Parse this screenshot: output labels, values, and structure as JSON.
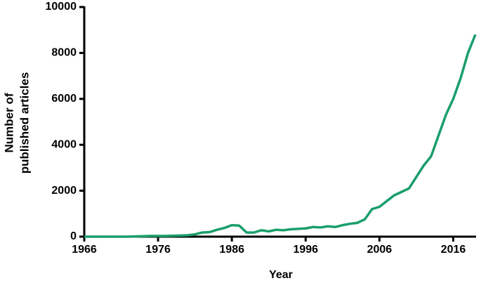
{
  "chart_data": {
    "type": "line",
    "xlabel": "Year",
    "ylabel": [
      "Number of",
      "published articles"
    ],
    "x": [
      1966,
      1967,
      1968,
      1969,
      1970,
      1971,
      1972,
      1973,
      1974,
      1975,
      1976,
      1977,
      1978,
      1979,
      1980,
      1981,
      1982,
      1983,
      1984,
      1985,
      1986,
      1987,
      1988,
      1989,
      1990,
      1991,
      1992,
      1993,
      1994,
      1995,
      1996,
      1997,
      1998,
      1999,
      2000,
      2001,
      2002,
      2003,
      2004,
      2005,
      2006,
      2007,
      2008,
      2009,
      2010,
      2011,
      2012,
      2013,
      2014,
      2015,
      2016,
      2017,
      2018,
      2019
    ],
    "series": [
      {
        "name": "articles",
        "color": "#1a9e6b",
        "values": [
          0,
          0,
          0,
          0,
          0,
          0,
          0,
          10,
          20,
          30,
          30,
          30,
          40,
          50,
          60,
          100,
          180,
          200,
          300,
          380,
          500,
          480,
          180,
          180,
          280,
          230,
          300,
          280,
          320,
          340,
          360,
          420,
          400,
          450,
          420,
          500,
          560,
          600,
          750,
          1200,
          1300,
          1550,
          1800,
          1950,
          2100,
          2600,
          3100,
          3500,
          4400,
          5300,
          6000,
          6900,
          8000,
          8800
        ]
      }
    ],
    "xlim": [
      1966,
      2019
    ],
    "xticks": [
      1966,
      1976,
      1986,
      1996,
      2006,
      2016
    ],
    "ylim": [
      0,
      10000
    ],
    "yticks": [
      0,
      2000,
      4000,
      6000,
      8000,
      10000
    ]
  }
}
